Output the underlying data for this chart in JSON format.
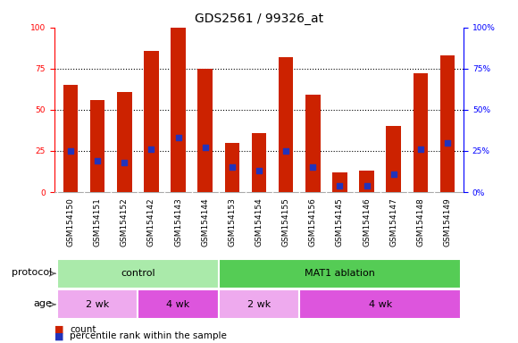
{
  "title": "GDS2561 / 99326_at",
  "samples": [
    "GSM154150",
    "GSM154151",
    "GSM154152",
    "GSM154142",
    "GSM154143",
    "GSM154144",
    "GSM154153",
    "GSM154154",
    "GSM154155",
    "GSM154156",
    "GSM154145",
    "GSM154146",
    "GSM154147",
    "GSM154148",
    "GSM154149"
  ],
  "counts": [
    65,
    56,
    61,
    86,
    100,
    75,
    30,
    36,
    82,
    59,
    12,
    13,
    40,
    72,
    83
  ],
  "percentiles": [
    25,
    19,
    18,
    26,
    33,
    27,
    15,
    13,
    25,
    15,
    4,
    4,
    11,
    26,
    30
  ],
  "protocol_groups": [
    {
      "label": "control",
      "start": 0,
      "end": 6,
      "color": "#aaeaaa"
    },
    {
      "label": "MAT1 ablation",
      "start": 6,
      "end": 15,
      "color": "#55cc55"
    }
  ],
  "age_groups": [
    {
      "label": "2 wk",
      "start": 0,
      "end": 3,
      "color": "#eeaaee"
    },
    {
      "label": "4 wk",
      "start": 3,
      "end": 6,
      "color": "#dd55dd"
    },
    {
      "label": "2 wk",
      "start": 6,
      "end": 9,
      "color": "#eeaaee"
    },
    {
      "label": "4 wk",
      "start": 9,
      "end": 15,
      "color": "#dd55dd"
    }
  ],
  "bar_color": "#cc2200",
  "dot_color": "#2233bb",
  "xtick_bg": "#cccccc",
  "plot_bg": "#ffffff",
  "ylim": [
    0,
    100
  ],
  "yticks": [
    0,
    25,
    50,
    75,
    100
  ],
  "grid_color": "black",
  "title_fontsize": 10,
  "tick_fontsize": 6.5,
  "legend_fontsize": 7.5,
  "label_fontsize": 8
}
